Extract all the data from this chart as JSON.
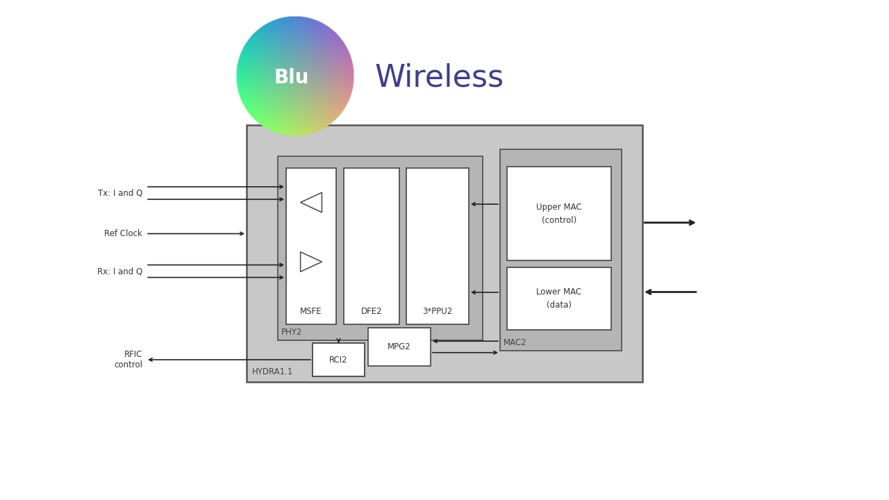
{
  "bg_color": "#ffffff",
  "outer_box_color": "#c8c8c8",
  "inner_group_color": "#b8b8b8",
  "block_bg": "#ffffff",
  "block_edge": "#444444",
  "arrow_color": "#222222",
  "logo_text_color": "#3d3d8f",
  "logo_blu_color": "#ffffff",
  "labels": {
    "msfe": "MSFE",
    "dfe2": "DFE2",
    "ppu2": "3*PPU2",
    "mpg2": "MPG2",
    "rci2": "RCI2",
    "upper_mac": "Upper MAC\n(control)",
    "lower_mac": "Lower MAC\n(data)",
    "phy2": "PHY2",
    "mac2": "MAC2",
    "hydra": "HYDRA1.1"
  },
  "input_labels": {
    "tx": "Tx: I and Q",
    "ref": "Ref Clock",
    "rx": "Rx: I and Q",
    "rfic": "RFIC\ncontrol"
  }
}
